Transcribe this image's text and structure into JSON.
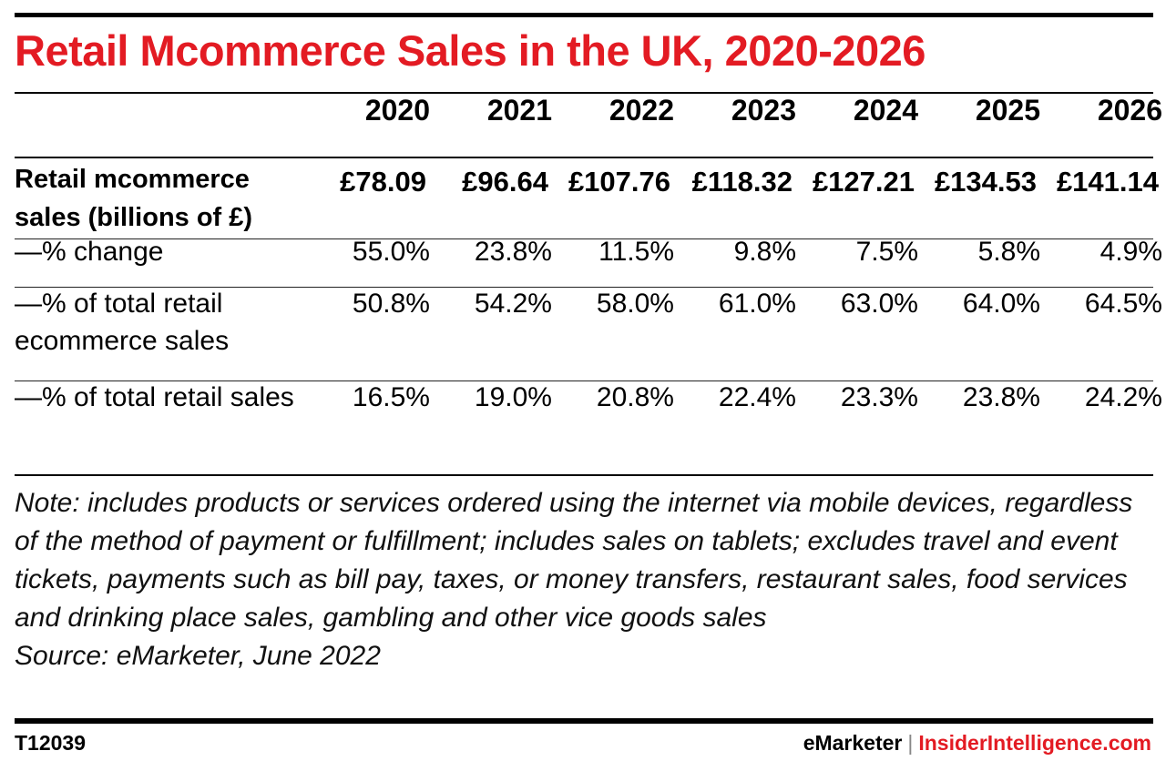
{
  "title": "Retail Mcommerce Sales in the UK, 2020-2026",
  "chart_data": {
    "type": "table",
    "title": "Retail Mcommerce Sales in the UK, 2020-2026",
    "columns": [
      "2020",
      "2021",
      "2022",
      "2023",
      "2024",
      "2025",
      "2026"
    ],
    "rows": [
      {
        "label": "Retail mcommerce sales (billions of £)",
        "values": [
          "£78.09",
          "£96.64",
          "£107.76",
          "£118.32",
          "£127.21",
          "£134.53",
          "£141.14"
        ]
      },
      {
        "label": "—% change",
        "values": [
          "55.0%",
          "23.8%",
          "11.5%",
          "9.8%",
          "7.5%",
          "5.8%",
          "4.9%"
        ]
      },
      {
        "label": "—% of total retail ecommerce sales",
        "values": [
          "50.8%",
          "54.2%",
          "58.0%",
          "61.0%",
          "63.0%",
          "64.0%",
          "64.5%"
        ]
      },
      {
        "label": "—% of total retail sales",
        "values": [
          "16.5%",
          "19.0%",
          "20.8%",
          "22.4%",
          "23.3%",
          "23.8%",
          "24.2%"
        ]
      }
    ]
  },
  "note": "Note: includes products or services ordered using the internet via mobile devices, regardless of the method of payment or fulfillment; includes sales on tablets; excludes travel and event tickets, payments such as bill pay, taxes, or money transfers, restaurant sales, food services and drinking place sales, gambling and other vice goods sales",
  "source": "Source: eMarketer, June 2022",
  "footer": {
    "chart_id": "T12039",
    "brand_emarketer": "eMarketer",
    "separator": "|",
    "brand_insider": "InsiderIntelligence.com"
  },
  "colors": {
    "accent": "#e31b23",
    "text": "#000000"
  }
}
